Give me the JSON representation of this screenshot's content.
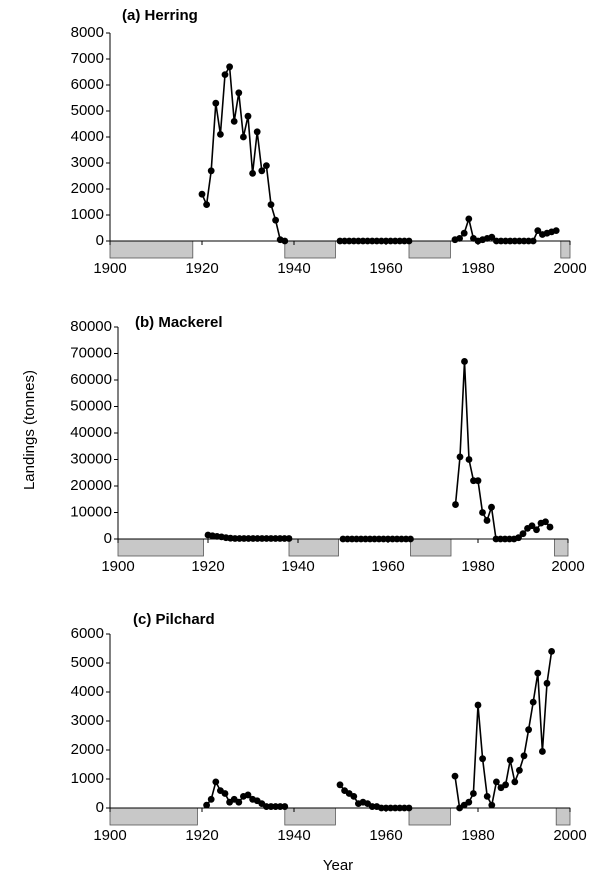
{
  "chart_data": [
    {
      "type": "line",
      "title": "(a)  Herring",
      "color": "#000000",
      "shade_color": "#c8c8c8",
      "xlim": [
        1900,
        2000
      ],
      "xticks": [
        1900,
        1920,
        1940,
        1960,
        1980,
        2000
      ],
      "ylim": [
        0,
        8000
      ],
      "yticks": [
        0,
        1000,
        2000,
        3000,
        4000,
        5000,
        6000,
        7000,
        8000
      ],
      "shaded": [
        [
          1900,
          1918
        ],
        [
          1938,
          1949
        ],
        [
          1965,
          1974
        ],
        [
          1998,
          2000
        ]
      ],
      "x": [
        1920,
        1921,
        1922,
        1923,
        1924,
        1925,
        1926,
        1927,
        1928,
        1929,
        1930,
        1931,
        1932,
        1933,
        1934,
        1935,
        1936,
        1937,
        1938,
        1944,
        1950,
        1951,
        1952,
        1953,
        1954,
        1955,
        1956,
        1957,
        1958,
        1959,
        1960,
        1961,
        1962,
        1963,
        1964,
        1965,
        1970,
        1975,
        1976,
        1977,
        1978,
        1979,
        1980,
        1981,
        1982,
        1983,
        1984,
        1985,
        1986,
        1987,
        1988,
        1989,
        1990,
        1991,
        1992,
        1993,
        1994,
        1995,
        1996,
        1997
      ],
      "values": [
        1800,
        1400,
        2700,
        5300,
        4100,
        6400,
        6700,
        4600,
        5700,
        4000,
        4800,
        2600,
        4200,
        2700,
        2900,
        1400,
        800,
        50,
        0,
        null,
        0,
        0,
        0,
        0,
        0,
        0,
        0,
        0,
        0,
        0,
        0,
        0,
        0,
        0,
        0,
        0,
        null,
        50,
        100,
        300,
        850,
        100,
        0,
        50,
        100,
        150,
        0,
        0,
        0,
        0,
        0,
        0,
        0,
        0,
        0,
        400,
        250,
        300,
        350,
        400
      ]
    },
    {
      "type": "line",
      "title": "(b) Mackerel",
      "ylabel": "Landings (tonnes)",
      "color": "#000000",
      "shade_color": "#c8c8c8",
      "xlim": [
        1900,
        2000
      ],
      "xticks": [
        1900,
        1920,
        1940,
        1960,
        1980,
        2000
      ],
      "ylim": [
        0,
        80000
      ],
      "yticks": [
        0,
        10000,
        20000,
        30000,
        40000,
        50000,
        60000,
        70000,
        80000
      ],
      "shaded": [
        [
          1900,
          1919
        ],
        [
          1938,
          1949
        ],
        [
          1965,
          1974
        ],
        [
          1997,
          2000
        ]
      ],
      "x": [
        1920,
        1921,
        1922,
        1923,
        1924,
        1925,
        1926,
        1927,
        1928,
        1929,
        1930,
        1931,
        1932,
        1933,
        1934,
        1935,
        1936,
        1937,
        1938,
        1944,
        1950,
        1951,
        1952,
        1953,
        1954,
        1955,
        1956,
        1957,
        1958,
        1959,
        1960,
        1961,
        1962,
        1963,
        1964,
        1965,
        1970,
        1975,
        1976,
        1977,
        1978,
        1979,
        1980,
        1981,
        1982,
        1983,
        1984,
        1985,
        1986,
        1987,
        1988,
        1989,
        1990,
        1991,
        1992,
        1993,
        1994,
        1995,
        1996
      ],
      "values": [
        1500,
        1200,
        1000,
        800,
        500,
        300,
        200,
        200,
        200,
        200,
        200,
        200,
        200,
        200,
        200,
        200,
        200,
        200,
        200,
        null,
        0,
        0,
        0,
        0,
        0,
        0,
        0,
        0,
        0,
        0,
        0,
        0,
        0,
        0,
        0,
        0,
        null,
        13000,
        31000,
        67000,
        30000,
        22000,
        22000,
        10000,
        7000,
        12000,
        0,
        0,
        0,
        0,
        0,
        500,
        2000,
        4000,
        5000,
        3500,
        6000,
        6500,
        4500
      ]
    },
    {
      "type": "line",
      "title": "(c)  Pilchard",
      "xlabel": "Year",
      "color": "#000000",
      "shade_color": "#c8c8c8",
      "xlim": [
        1900,
        2000
      ],
      "xticks": [
        1900,
        1920,
        1940,
        1960,
        1980,
        2000
      ],
      "ylim": [
        0,
        6000
      ],
      "yticks": [
        0,
        1000,
        2000,
        3000,
        4000,
        5000,
        6000
      ],
      "shaded": [
        [
          1900,
          1919
        ],
        [
          1938,
          1949
        ],
        [
          1965,
          1974
        ],
        [
          1997,
          2000
        ]
      ],
      "x": [
        1921,
        1922,
        1923,
        1924,
        1925,
        1926,
        1927,
        1928,
        1929,
        1930,
        1931,
        1932,
        1933,
        1934,
        1935,
        1936,
        1937,
        1938,
        1944,
        1950,
        1951,
        1952,
        1953,
        1954,
        1955,
        1956,
        1957,
        1958,
        1959,
        1960,
        1961,
        1962,
        1963,
        1964,
        1965,
        1970,
        1975,
        1976,
        1977,
        1978,
        1979,
        1980,
        1981,
        1982,
        1983,
        1984,
        1985,
        1986,
        1987,
        1988,
        1989,
        1990,
        1991,
        1992,
        1993,
        1994,
        1995,
        1996
      ],
      "values": [
        100,
        300,
        900,
        600,
        500,
        200,
        300,
        200,
        400,
        450,
        300,
        250,
        150,
        50,
        50,
        50,
        50,
        50,
        null,
        800,
        600,
        500,
        400,
        150,
        200,
        150,
        50,
        50,
        0,
        0,
        0,
        0,
        0,
        0,
        0,
        null,
        1100,
        0,
        100,
        200,
        500,
        3550,
        1700,
        400,
        100,
        900,
        700,
        800,
        1650,
        900,
        1300,
        1800,
        2700,
        3650,
        4650,
        1950,
        4300,
        5400
      ]
    }
  ]
}
